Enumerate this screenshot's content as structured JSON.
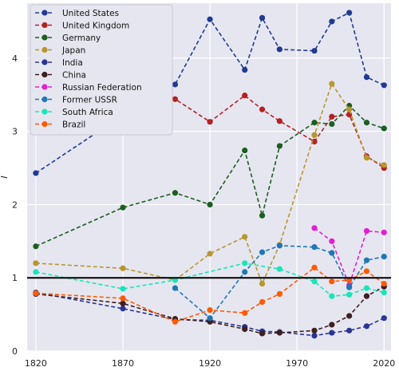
{
  "chart_data": {
    "type": "line",
    "title": "",
    "xlabel": "",
    "ylabel": "I",
    "xlim": [
      1815,
      2024
    ],
    "ylim": [
      0,
      4.75
    ],
    "x_ticks": [
      1820,
      1870,
      1920,
      1970,
      2020
    ],
    "y_ticks": [
      0,
      1,
      2,
      3,
      4
    ],
    "grid": true,
    "background": "#e6e6f0",
    "legend_position": "top-left",
    "reference_line": {
      "y": 1,
      "color": "#000000"
    },
    "series": [
      {
        "name": "United States",
        "color": "#1f3a93",
        "points": [
          [
            1820,
            2.43
          ],
          [
            1870,
            3.22
          ],
          [
            1900,
            3.64
          ],
          [
            1920,
            4.53
          ],
          [
            1940,
            3.84
          ],
          [
            1950,
            4.55
          ],
          [
            1960,
            4.12
          ],
          [
            1980,
            4.1
          ],
          [
            1990,
            4.5
          ],
          [
            2000,
            4.62
          ],
          [
            2010,
            3.74
          ],
          [
            2020,
            3.63
          ]
        ]
      },
      {
        "name": "United Kingdom",
        "color": "#b22222",
        "points": [
          [
            1820,
            3.0
          ],
          [
            1870,
            3.88
          ],
          [
            1900,
            3.44
          ],
          [
            1920,
            3.13
          ],
          [
            1940,
            3.49
          ],
          [
            1950,
            3.3
          ],
          [
            1960,
            3.14
          ],
          [
            1980,
            2.86
          ],
          [
            1990,
            3.2
          ],
          [
            2000,
            3.23
          ],
          [
            2010,
            2.66
          ],
          [
            2020,
            2.5
          ]
        ]
      },
      {
        "name": "Germany",
        "color": "#1b5e20",
        "points": [
          [
            1820,
            1.43
          ],
          [
            1870,
            1.96
          ],
          [
            1900,
            2.16
          ],
          [
            1920,
            2.0
          ],
          [
            1940,
            2.74
          ],
          [
            1950,
            1.85
          ],
          [
            1960,
            2.8
          ],
          [
            1980,
            3.12
          ],
          [
            1990,
            3.1
          ],
          [
            2000,
            3.35
          ],
          [
            2010,
            3.12
          ],
          [
            2020,
            3.04
          ]
        ]
      },
      {
        "name": "Japan",
        "color": "#b8962e",
        "points": [
          [
            1820,
            1.2
          ],
          [
            1870,
            1.13
          ],
          [
            1900,
            0.97
          ],
          [
            1920,
            1.33
          ],
          [
            1940,
            1.56
          ],
          [
            1950,
            0.92
          ],
          [
            1960,
            1.45
          ],
          [
            1980,
            2.95
          ],
          [
            1990,
            3.65
          ],
          [
            2000,
            3.3
          ],
          [
            2010,
            2.64
          ],
          [
            2020,
            2.54
          ]
        ]
      },
      {
        "name": "India",
        "color": "#283593",
        "points": [
          [
            1820,
            0.8
          ],
          [
            1870,
            0.58
          ],
          [
            1900,
            0.43
          ],
          [
            1920,
            0.42
          ],
          [
            1940,
            0.33
          ],
          [
            1950,
            0.27
          ],
          [
            1960,
            0.26
          ],
          [
            1980,
            0.21
          ],
          [
            1990,
            0.25
          ],
          [
            2000,
            0.28
          ],
          [
            2010,
            0.34
          ],
          [
            2020,
            0.45
          ]
        ]
      },
      {
        "name": "China",
        "color": "#3e1f1f",
        "points": [
          [
            1820,
            0.78
          ],
          [
            1870,
            0.65
          ],
          [
            1900,
            0.44
          ],
          [
            1920,
            0.4
          ],
          [
            1940,
            0.3
          ],
          [
            1950,
            0.24
          ],
          [
            1960,
            0.25
          ],
          [
            1980,
            0.28
          ],
          [
            1990,
            0.36
          ],
          [
            2000,
            0.48
          ],
          [
            2010,
            0.75
          ],
          [
            2020,
            0.88
          ]
        ]
      },
      {
        "name": "Russian Federation",
        "color": "#e020d0",
        "points": [
          [
            1980,
            1.68
          ],
          [
            1990,
            1.5
          ],
          [
            2000,
            0.9
          ],
          [
            2010,
            1.64
          ],
          [
            2020,
            1.62
          ]
        ]
      },
      {
        "name": "Former USSR",
        "color": "#1f77b4",
        "points": [
          [
            1900,
            0.86
          ],
          [
            1920,
            0.45
          ],
          [
            1940,
            1.08
          ],
          [
            1950,
            1.35
          ],
          [
            1960,
            1.44
          ],
          [
            1980,
            1.42
          ],
          [
            1990,
            1.34
          ],
          [
            2000,
            0.87
          ],
          [
            2010,
            1.24
          ],
          [
            2020,
            1.29
          ]
        ]
      },
      {
        "name": "South Africa",
        "color": "#19e6b8",
        "points": [
          [
            1820,
            1.08
          ],
          [
            1870,
            0.85
          ],
          [
            1900,
            0.97
          ],
          [
            1940,
            1.2
          ],
          [
            1960,
            1.12
          ],
          [
            1980,
            0.95
          ],
          [
            1990,
            0.75
          ],
          [
            2000,
            0.77
          ],
          [
            2010,
            0.86
          ],
          [
            2020,
            0.8
          ]
        ]
      },
      {
        "name": "Brazil",
        "color": "#ff5a00",
        "points": [
          [
            1820,
            0.79
          ],
          [
            1870,
            0.72
          ],
          [
            1900,
            0.4
          ],
          [
            1920,
            0.56
          ],
          [
            1940,
            0.52
          ],
          [
            1950,
            0.67
          ],
          [
            1960,
            0.78
          ],
          [
            1980,
            1.14
          ],
          [
            1990,
            0.95
          ],
          [
            2000,
            0.97
          ],
          [
            2010,
            1.09
          ],
          [
            2020,
            0.92
          ]
        ]
      }
    ]
  }
}
